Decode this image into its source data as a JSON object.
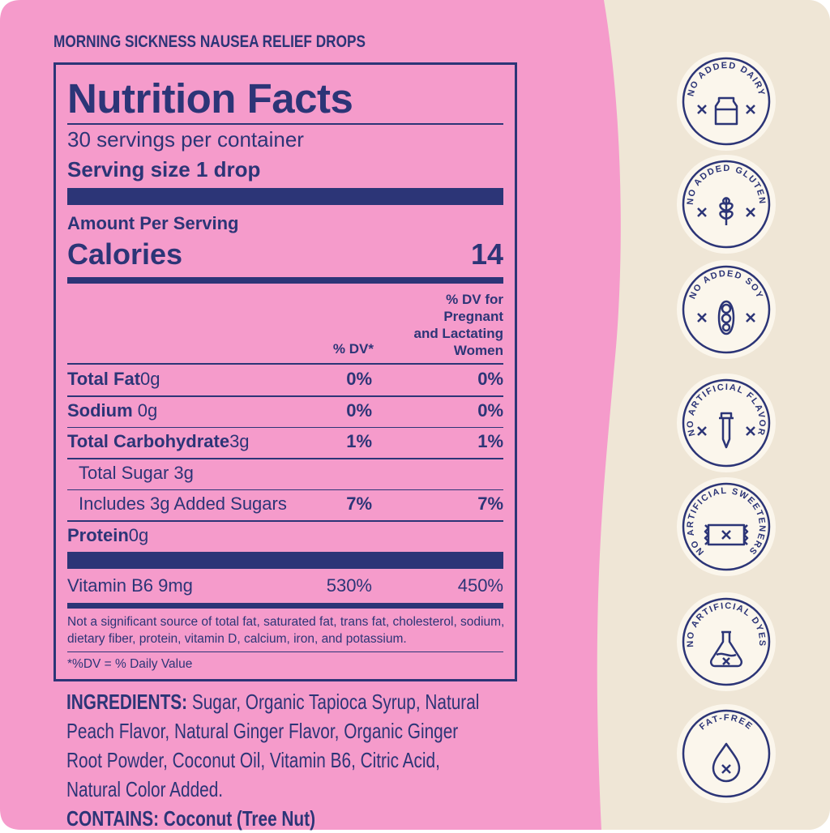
{
  "header": {
    "product": "MORNING SICKNESS NAUSEA RELIEF DROPS"
  },
  "panel": {
    "title": "Nutrition Facts",
    "servings": "30 servings per container",
    "serving_size": "Serving size 1 drop",
    "amount_per_serving": "Amount Per Serving",
    "calories_label": "Calories",
    "calories_value": "14",
    "col_dv": "% DV*",
    "col_dv_pregnant": [
      "% DV for",
      "Pregnant",
      "and Lactating",
      "Women"
    ],
    "rows": [
      {
        "name": "Total Fat",
        "amount": "0g",
        "dv": "0%",
        "dv_pregnant": "0%"
      },
      {
        "name": "Sodium",
        "amount": " 0g",
        "dv": "0%",
        "dv_pregnant": "0%"
      },
      {
        "name": "Total Carbohydrate",
        "amount": "3g",
        "dv": "1%",
        "dv_pregnant": "1%"
      },
      {
        "sub": "Total Sugar 3g"
      },
      {
        "sub": "Includes 3g Added Sugars",
        "dv": "7%",
        "dv_pregnant": "7%"
      },
      {
        "name": "Protein",
        "amount": "0g"
      }
    ],
    "vitamin": {
      "name": "Vitamin B6 9mg",
      "dv": "530%",
      "dv_pregnant": "450%"
    },
    "footnote": "Not a significant source of total fat, saturated fat, trans fat, cholesterol, sodium, dietary fiber, protein, vitamin D, calcium, iron, and potassium.",
    "dv_note": "*%DV = % Daily Value"
  },
  "ingredients": {
    "label": "INGREDIENTS:",
    "text": "Sugar, Organic Tapioca Syrup, Natural Peach Flavor, Natural Ginger Flavor, Organic Ginger Root Powder, Coconut Oil, Vitamin B6, Citric Acid, Natural Color Added.",
    "contains_label": "CONTAINS:",
    "contains": "Coconut (Tree Nut)"
  },
  "badges": [
    "NO ADDED DAIRY",
    "NO ADDED GLUTEN",
    "NO ADDED SOY",
    "NO ARTIFICIAL FLAVOR",
    "NO ARTIFICIAL SWEETENERS",
    "NO ARTIFICIAL DYES",
    "FAT-FREE"
  ]
}
